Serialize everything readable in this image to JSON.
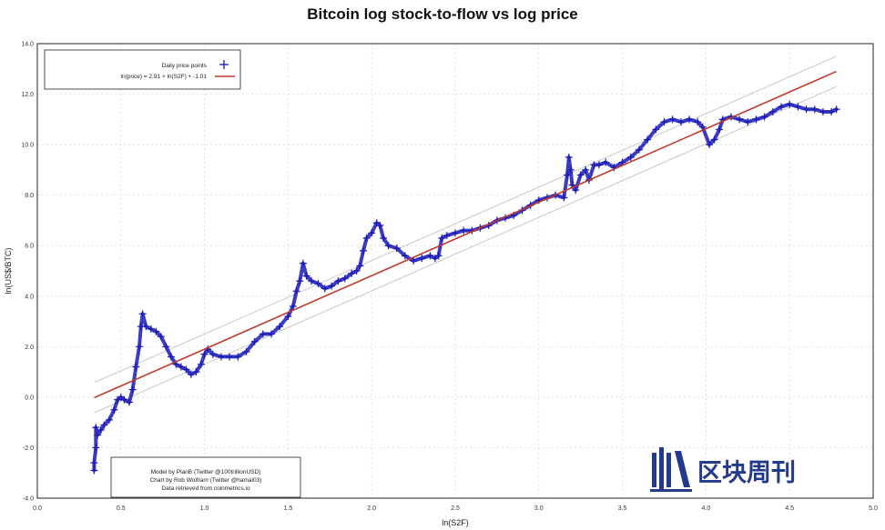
{
  "chart_data": {
    "type": "scatter",
    "title": "Bitcoin log stock-to-flow vs log price",
    "xlabel": "ln(S2F)",
    "ylabel": "ln(US$/BTC)",
    "xlim": [
      0.0,
      5.0
    ],
    "ylim": [
      -4.0,
      14.0
    ],
    "xticks": [
      "0.0",
      "0.5",
      "1.0",
      "1.5",
      "2.0",
      "2.5",
      "3.0",
      "3.5",
      "4.0",
      "4.5",
      "5.0"
    ],
    "yticks": [
      "-4.0",
      "-2.0",
      "0.0",
      "2.0",
      "4.0",
      "6.0",
      "8.0",
      "10.0",
      "12.0",
      "14.0"
    ],
    "grid": true,
    "legend_position": "top-left",
    "series": [
      {
        "name": "Daily price points",
        "kind": "scatter",
        "marker": "+",
        "color": "#1a1ab8",
        "points": [
          [
            0.34,
            -2.9
          ],
          [
            0.34,
            -2.6
          ],
          [
            0.35,
            -2.0
          ],
          [
            0.35,
            -1.2
          ],
          [
            0.36,
            -1.5
          ],
          [
            0.38,
            -1.3
          ],
          [
            0.4,
            -1.1
          ],
          [
            0.43,
            -0.9
          ],
          [
            0.46,
            -0.5
          ],
          [
            0.48,
            -0.1
          ],
          [
            0.5,
            0.0
          ],
          [
            0.52,
            -0.1
          ],
          [
            0.55,
            -0.2
          ],
          [
            0.57,
            0.3
          ],
          [
            0.59,
            1.2
          ],
          [
            0.61,
            2.0
          ],
          [
            0.62,
            2.8
          ],
          [
            0.63,
            3.3
          ],
          [
            0.65,
            2.8
          ],
          [
            0.68,
            2.7
          ],
          [
            0.71,
            2.6
          ],
          [
            0.74,
            2.4
          ],
          [
            0.77,
            2.0
          ],
          [
            0.8,
            1.6
          ],
          [
            0.83,
            1.3
          ],
          [
            0.86,
            1.2
          ],
          [
            0.89,
            1.1
          ],
          [
            0.92,
            0.9
          ],
          [
            0.95,
            1.0
          ],
          [
            0.98,
            1.3
          ],
          [
            1.0,
            1.7
          ],
          [
            1.02,
            1.9
          ],
          [
            1.05,
            1.7
          ],
          [
            1.1,
            1.6
          ],
          [
            1.15,
            1.6
          ],
          [
            1.2,
            1.6
          ],
          [
            1.25,
            1.8
          ],
          [
            1.3,
            2.2
          ],
          [
            1.35,
            2.5
          ],
          [
            1.4,
            2.5
          ],
          [
            1.45,
            2.8
          ],
          [
            1.5,
            3.2
          ],
          [
            1.53,
            3.6
          ],
          [
            1.55,
            4.2
          ],
          [
            1.57,
            4.6
          ],
          [
            1.59,
            5.3
          ],
          [
            1.61,
            4.8
          ],
          [
            1.64,
            4.6
          ],
          [
            1.68,
            4.5
          ],
          [
            1.72,
            4.3
          ],
          [
            1.76,
            4.4
          ],
          [
            1.8,
            4.6
          ],
          [
            1.84,
            4.7
          ],
          [
            1.88,
            4.9
          ],
          [
            1.91,
            5.0
          ],
          [
            1.93,
            5.2
          ],
          [
            1.95,
            5.8
          ],
          [
            1.97,
            6.3
          ],
          [
            2.0,
            6.5
          ],
          [
            2.03,
            6.9
          ],
          [
            2.05,
            6.8
          ],
          [
            2.07,
            6.3
          ],
          [
            2.1,
            6.0
          ],
          [
            2.15,
            5.9
          ],
          [
            2.2,
            5.6
          ],
          [
            2.25,
            5.4
          ],
          [
            2.3,
            5.5
          ],
          [
            2.35,
            5.6
          ],
          [
            2.38,
            5.5
          ],
          [
            2.4,
            5.6
          ],
          [
            2.42,
            6.3
          ],
          [
            2.45,
            6.4
          ],
          [
            2.5,
            6.5
          ],
          [
            2.55,
            6.6
          ],
          [
            2.6,
            6.6
          ],
          [
            2.65,
            6.7
          ],
          [
            2.7,
            6.8
          ],
          [
            2.75,
            7.0
          ],
          [
            2.8,
            7.1
          ],
          [
            2.85,
            7.2
          ],
          [
            2.9,
            7.4
          ],
          [
            2.95,
            7.6
          ],
          [
            3.0,
            7.8
          ],
          [
            3.05,
            7.9
          ],
          [
            3.1,
            8.0
          ],
          [
            3.15,
            7.9
          ],
          [
            3.17,
            8.8
          ],
          [
            3.18,
            9.5
          ],
          [
            3.19,
            9.0
          ],
          [
            3.2,
            8.4
          ],
          [
            3.22,
            8.2
          ],
          [
            3.25,
            8.8
          ],
          [
            3.28,
            9.0
          ],
          [
            3.3,
            8.6
          ],
          [
            3.33,
            9.2
          ],
          [
            3.36,
            9.2
          ],
          [
            3.4,
            9.3
          ],
          [
            3.45,
            9.1
          ],
          [
            3.5,
            9.3
          ],
          [
            3.55,
            9.5
          ],
          [
            3.6,
            9.8
          ],
          [
            3.65,
            10.2
          ],
          [
            3.7,
            10.6
          ],
          [
            3.75,
            10.9
          ],
          [
            3.8,
            11.0
          ],
          [
            3.85,
            10.9
          ],
          [
            3.9,
            11.0
          ],
          [
            3.95,
            10.9
          ],
          [
            3.98,
            10.7
          ],
          [
            4.02,
            10.0
          ],
          [
            4.05,
            10.2
          ],
          [
            4.08,
            10.6
          ],
          [
            4.1,
            11.0
          ],
          [
            4.15,
            11.1
          ],
          [
            4.2,
            11.0
          ],
          [
            4.25,
            10.9
          ],
          [
            4.3,
            11.0
          ],
          [
            4.35,
            11.1
          ],
          [
            4.4,
            11.3
          ],
          [
            4.45,
            11.5
          ],
          [
            4.5,
            11.6
          ],
          [
            4.55,
            11.5
          ],
          [
            4.6,
            11.4
          ],
          [
            4.65,
            11.4
          ],
          [
            4.7,
            11.3
          ],
          [
            4.75,
            11.3
          ],
          [
            4.78,
            11.4
          ]
        ]
      },
      {
        "name": "ln(price) = 2.91 × ln(S2F) + -1.01",
        "kind": "line",
        "color": "#c0392b",
        "x": [
          0.34,
          4.78
        ],
        "y": [
          -0.02,
          12.9
        ]
      },
      {
        "kind": "band",
        "color": "#c8c8c8",
        "x": [
          0.34,
          4.78
        ],
        "upper": [
          0.58,
          13.5
        ],
        "lower": [
          -0.62,
          12.3
        ]
      }
    ],
    "annotations": [
      "Model by PlanB (Twitter @100trillionUSD)",
      "Chart by Rob Wolfram (Twitter @hamal03)",
      "Data retrieved from coinmetrics.io"
    ]
  },
  "watermark": {
    "text": "区块周刊"
  }
}
